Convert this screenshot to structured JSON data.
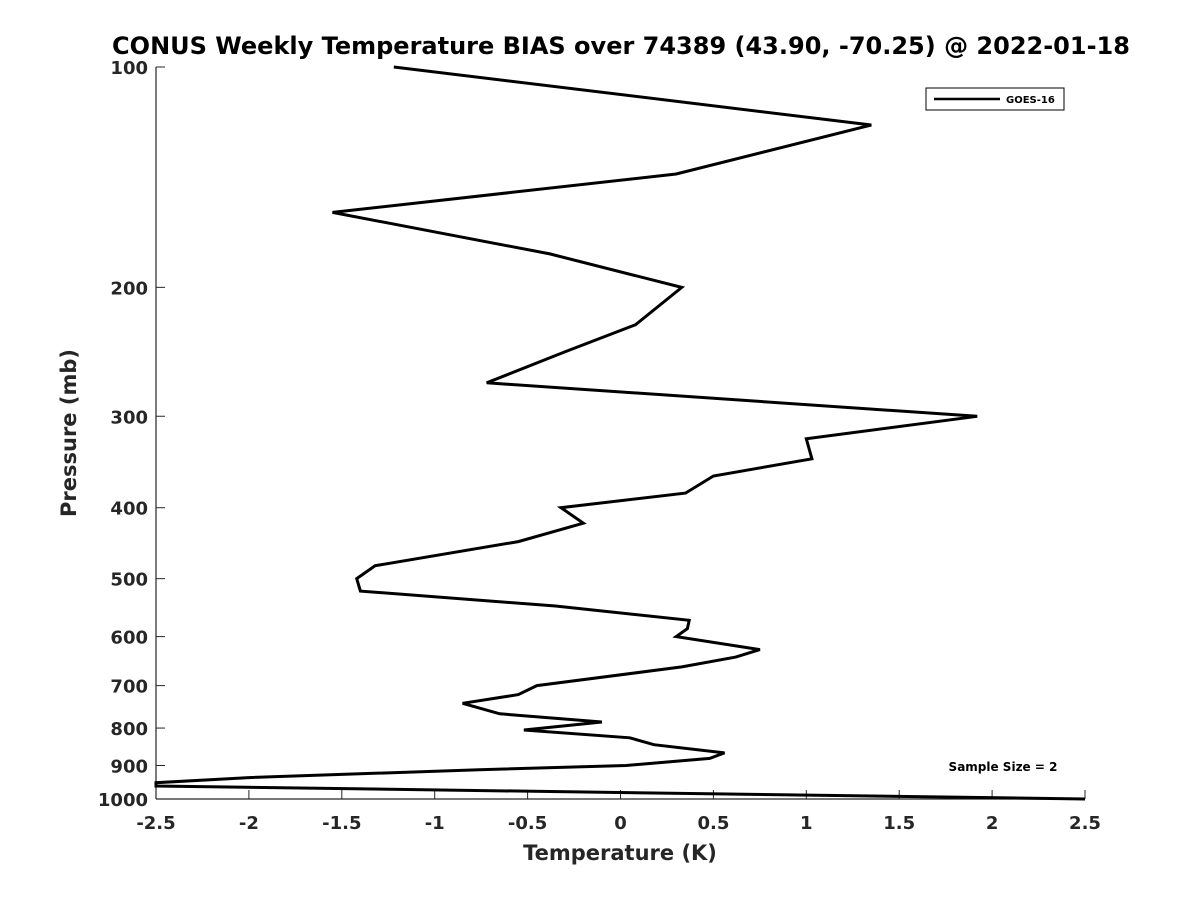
{
  "chart_data": {
    "type": "line",
    "title": "CONUS Weekly Temperature BIAS over 74389 (43.90, -70.25) @ 2022-01-18",
    "xlabel": "Temperature (K)",
    "ylabel": "Pressure (mb)",
    "xlim": [
      -2.5,
      2.5
    ],
    "ylim": [
      100,
      1000
    ],
    "y_scale": "log",
    "y_reversed": true,
    "grid": false,
    "legend_position": "top-right",
    "x_ticks": [
      -2.5,
      -2,
      -1.5,
      -1,
      -0.5,
      0,
      0.5,
      1,
      1.5,
      2,
      2.5
    ],
    "x_tick_labels": [
      "-2.5",
      "-2",
      "-1.5",
      "-1",
      "-0.5",
      "0",
      "0.5",
      "1",
      "1.5",
      "2",
      "2.5"
    ],
    "y_ticks": [
      100,
      200,
      300,
      400,
      500,
      600,
      700,
      800,
      900,
      1000
    ],
    "y_tick_labels": [
      "100",
      "200",
      "300",
      "400",
      "500",
      "600",
      "700",
      "800",
      "900",
      "1000"
    ],
    "series": [
      {
        "name": "GOES-16",
        "color": "#000000",
        "points": [
          {
            "x": -1.22,
            "p": 100
          },
          {
            "x": 1.35,
            "p": 120
          },
          {
            "x": 0.3,
            "p": 140
          },
          {
            "x": -1.55,
            "p": 158
          },
          {
            "x": -0.38,
            "p": 180
          },
          {
            "x": 0.33,
            "p": 200
          },
          {
            "x": 0.08,
            "p": 225
          },
          {
            "x": -0.3,
            "p": 245
          },
          {
            "x": -0.72,
            "p": 270
          },
          {
            "x": 1.92,
            "p": 300
          },
          {
            "x": 1.0,
            "p": 322
          },
          {
            "x": 1.03,
            "p": 343
          },
          {
            "x": 0.5,
            "p": 362
          },
          {
            "x": 0.35,
            "p": 382
          },
          {
            "x": -0.32,
            "p": 400
          },
          {
            "x": -0.2,
            "p": 420
          },
          {
            "x": -0.55,
            "p": 445
          },
          {
            "x": -1.32,
            "p": 480
          },
          {
            "x": -1.42,
            "p": 500
          },
          {
            "x": -1.4,
            "p": 520
          },
          {
            "x": -0.35,
            "p": 545
          },
          {
            "x": 0.37,
            "p": 570
          },
          {
            "x": 0.36,
            "p": 585
          },
          {
            "x": 0.3,
            "p": 600
          },
          {
            "x": 0.75,
            "p": 625
          },
          {
            "x": 0.62,
            "p": 640
          },
          {
            "x": 0.33,
            "p": 660
          },
          {
            "x": -0.45,
            "p": 700
          },
          {
            "x": -0.55,
            "p": 720
          },
          {
            "x": -0.85,
            "p": 740
          },
          {
            "x": -0.65,
            "p": 765
          },
          {
            "x": -0.1,
            "p": 785
          },
          {
            "x": -0.52,
            "p": 805
          },
          {
            "x": 0.05,
            "p": 825
          },
          {
            "x": 0.18,
            "p": 843
          },
          {
            "x": 0.56,
            "p": 865
          },
          {
            "x": 0.48,
            "p": 880
          },
          {
            "x": 0.03,
            "p": 900
          },
          {
            "x": -0.76,
            "p": 912
          },
          {
            "x": -2.0,
            "p": 935
          },
          {
            "x": -2.5,
            "p": 950
          },
          {
            "x": -2.5,
            "p": 960
          },
          {
            "x": 2.5,
            "p": 1000
          }
        ]
      }
    ]
  },
  "legend": {
    "entries": [
      {
        "label": "GOES-16",
        "color": "#000000"
      }
    ]
  },
  "annotation": {
    "text": "Sample Size = 2"
  }
}
